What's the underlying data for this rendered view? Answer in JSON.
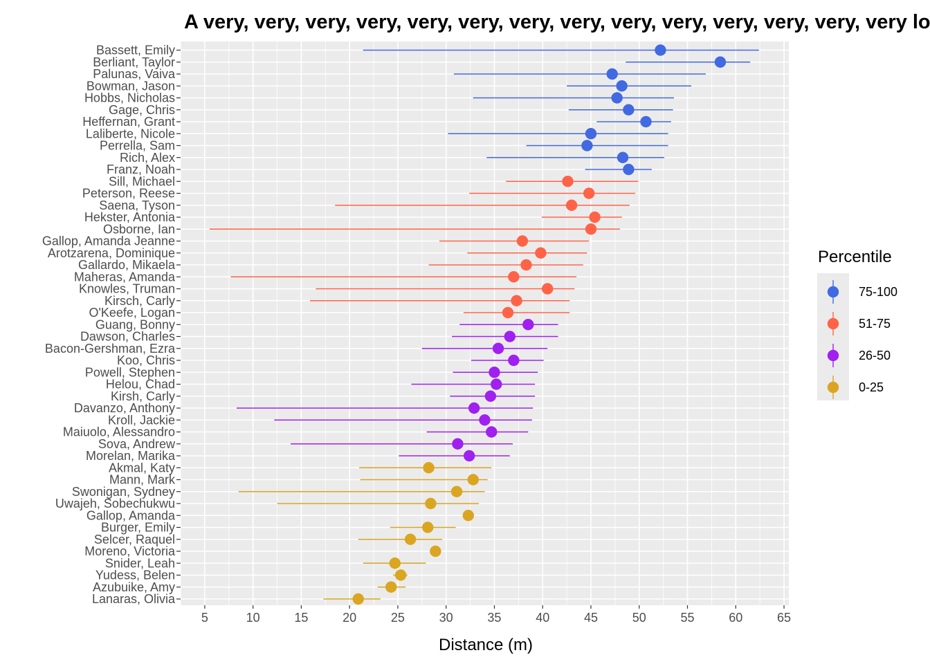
{
  "chart_data": {
    "type": "scatter",
    "title": "A very, very, very, very, very, very, very, very, very, very, very, very, very, very long title",
    "xlabel": "Distance (m)",
    "ylabel": "",
    "xlim": [
      2.5,
      65.5
    ],
    "x_ticks": [
      5,
      10,
      15,
      20,
      25,
      30,
      35,
      40,
      45,
      50,
      55,
      60,
      65
    ],
    "grid": true,
    "legend": {
      "title": "Percentile",
      "placement": "right",
      "entries": [
        {
          "label": "75-100",
          "color": "#4169E1"
        },
        {
          "label": "51-75",
          "color": "#FF6347"
        },
        {
          "label": "26-50",
          "color": "#A020F0"
        },
        {
          "label": "0-25",
          "color": "#DAA520"
        }
      ]
    },
    "rows": [
      {
        "name": "Bassett, Emily",
        "group": "75-100",
        "value": 52.2,
        "low": 21.4,
        "high": 62.4
      },
      {
        "name": "Berliant, Taylor",
        "group": "75-100",
        "value": 58.4,
        "low": 48.6,
        "high": 61.5
      },
      {
        "name": "Palunas, Vaiva",
        "group": "75-100",
        "value": 47.2,
        "low": 30.8,
        "high": 56.9
      },
      {
        "name": "Bowman, Jason",
        "group": "75-100",
        "value": 48.2,
        "low": 42.5,
        "high": 55.4
      },
      {
        "name": "Hobbs, Nicholas",
        "group": "75-100",
        "value": 47.7,
        "low": 32.8,
        "high": 53.6
      },
      {
        "name": "Gage, Chris",
        "group": "75-100",
        "value": 48.9,
        "low": 42.7,
        "high": 53.5
      },
      {
        "name": "Heffernan, Grant",
        "group": "75-100",
        "value": 50.7,
        "low": 45.6,
        "high": 53.3
      },
      {
        "name": "Laliberte, Nicole",
        "group": "75-100",
        "value": 45.0,
        "low": 30.2,
        "high": 53.0
      },
      {
        "name": "Perrella, Sam",
        "group": "75-100",
        "value": 44.6,
        "low": 38.3,
        "high": 53.0
      },
      {
        "name": "Rich, Alex",
        "group": "75-100",
        "value": 48.3,
        "low": 34.2,
        "high": 52.6
      },
      {
        "name": "Franz, Noah",
        "group": "75-100",
        "value": 48.9,
        "low": 44.4,
        "high": 51.3
      },
      {
        "name": "Sill, Michael",
        "group": "51-75",
        "value": 42.6,
        "low": 36.2,
        "high": 49.9
      },
      {
        "name": "Peterson, Reese",
        "group": "51-75",
        "value": 44.8,
        "low": 32.4,
        "high": 49.6
      },
      {
        "name": "Saena, Tyson",
        "group": "51-75",
        "value": 43.0,
        "low": 18.5,
        "high": 49.0
      },
      {
        "name": "Hekster, Antonia",
        "group": "51-75",
        "value": 45.4,
        "low": 39.9,
        "high": 48.2
      },
      {
        "name": "Osborne, Ian",
        "group": "51-75",
        "value": 45.0,
        "low": 5.5,
        "high": 48.0
      },
      {
        "name": "Gallop, Amanda Jeanne",
        "group": "51-75",
        "value": 37.9,
        "low": 29.3,
        "high": 44.8
      },
      {
        "name": "Arotzarena, Dominique",
        "group": "51-75",
        "value": 39.8,
        "low": 32.2,
        "high": 44.6
      },
      {
        "name": "Gallardo, Mikaela",
        "group": "51-75",
        "value": 38.3,
        "low": 28.2,
        "high": 44.2
      },
      {
        "name": "Maheras, Amanda",
        "group": "51-75",
        "value": 37.0,
        "low": 7.7,
        "high": 43.5
      },
      {
        "name": "Knowles, Truman",
        "group": "51-75",
        "value": 40.5,
        "low": 16.5,
        "high": 43.3
      },
      {
        "name": "Kirsch, Carly",
        "group": "51-75",
        "value": 37.3,
        "low": 15.9,
        "high": 42.8
      },
      {
        "name": "O'Keefe, Logan",
        "group": "51-75",
        "value": 36.4,
        "low": 31.8,
        "high": 42.8
      },
      {
        "name": "Guang, Bonny",
        "group": "26-50",
        "value": 38.5,
        "low": 31.4,
        "high": 41.6
      },
      {
        "name": "Dawson, Charles",
        "group": "26-50",
        "value": 36.6,
        "low": 30.6,
        "high": 41.6
      },
      {
        "name": "Bacon-Gershman, Ezra",
        "group": "26-50",
        "value": 35.4,
        "low": 27.5,
        "high": 40.5
      },
      {
        "name": "Koo, Chris",
        "group": "26-50",
        "value": 37.0,
        "low": 32.6,
        "high": 40.1
      },
      {
        "name": "Powell, Stephen",
        "group": "26-50",
        "value": 35.0,
        "low": 30.7,
        "high": 39.5
      },
      {
        "name": "Helou, Chad",
        "group": "26-50",
        "value": 35.2,
        "low": 26.4,
        "high": 39.2
      },
      {
        "name": "Kirsh, Carly",
        "group": "26-50",
        "value": 34.6,
        "low": 30.4,
        "high": 39.2
      },
      {
        "name": "Davanzo, Anthony",
        "group": "26-50",
        "value": 32.9,
        "low": 8.3,
        "high": 39.0
      },
      {
        "name": "Kroll, Jackie",
        "group": "26-50",
        "value": 34.0,
        "low": 12.2,
        "high": 38.9
      },
      {
        "name": "Maiuolo, Alessandro",
        "group": "26-50",
        "value": 34.7,
        "low": 28.0,
        "high": 38.5
      },
      {
        "name": "Sova, Andrew",
        "group": "26-50",
        "value": 31.2,
        "low": 13.9,
        "high": 36.9
      },
      {
        "name": "Morelan, Marika",
        "group": "26-50",
        "value": 32.4,
        "low": 25.1,
        "high": 36.6
      },
      {
        "name": "Akmal, Katy",
        "group": "0-25",
        "value": 28.2,
        "low": 21.0,
        "high": 34.7
      },
      {
        "name": "Mann, Mark",
        "group": "0-25",
        "value": 32.8,
        "low": 21.1,
        "high": 34.3
      },
      {
        "name": "Swonigan, Sydney",
        "group": "0-25",
        "value": 31.1,
        "low": 8.5,
        "high": 34.0
      },
      {
        "name": "Uwajeh, Sobechukwu",
        "group": "0-25",
        "value": 28.4,
        "low": 12.5,
        "high": 33.4
      },
      {
        "name": "Gallop, Amanda",
        "group": "0-25",
        "value": 32.3,
        "low": 32.3,
        "high": 32.3
      },
      {
        "name": "Burger, Emily",
        "group": "0-25",
        "value": 28.1,
        "low": 24.2,
        "high": 31.0
      },
      {
        "name": "Selcer, Raquel",
        "group": "0-25",
        "value": 26.3,
        "low": 20.9,
        "high": 29.6
      },
      {
        "name": "Moreno, Victoria",
        "group": "0-25",
        "value": 28.9,
        "low": 28.9,
        "high": 28.9
      },
      {
        "name": "Snider, Leah",
        "group": "0-25",
        "value": 24.7,
        "low": 21.4,
        "high": 27.9
      },
      {
        "name": "Yudess, Belen",
        "group": "0-25",
        "value": 25.3,
        "low": 24.5,
        "high": 26.0
      },
      {
        "name": "Azubuike, Amy",
        "group": "0-25",
        "value": 24.3,
        "low": 22.9,
        "high": 25.8
      },
      {
        "name": "Lanaras, Olivia",
        "group": "0-25",
        "value": 20.9,
        "low": 17.3,
        "high": 23.2
      }
    ]
  }
}
